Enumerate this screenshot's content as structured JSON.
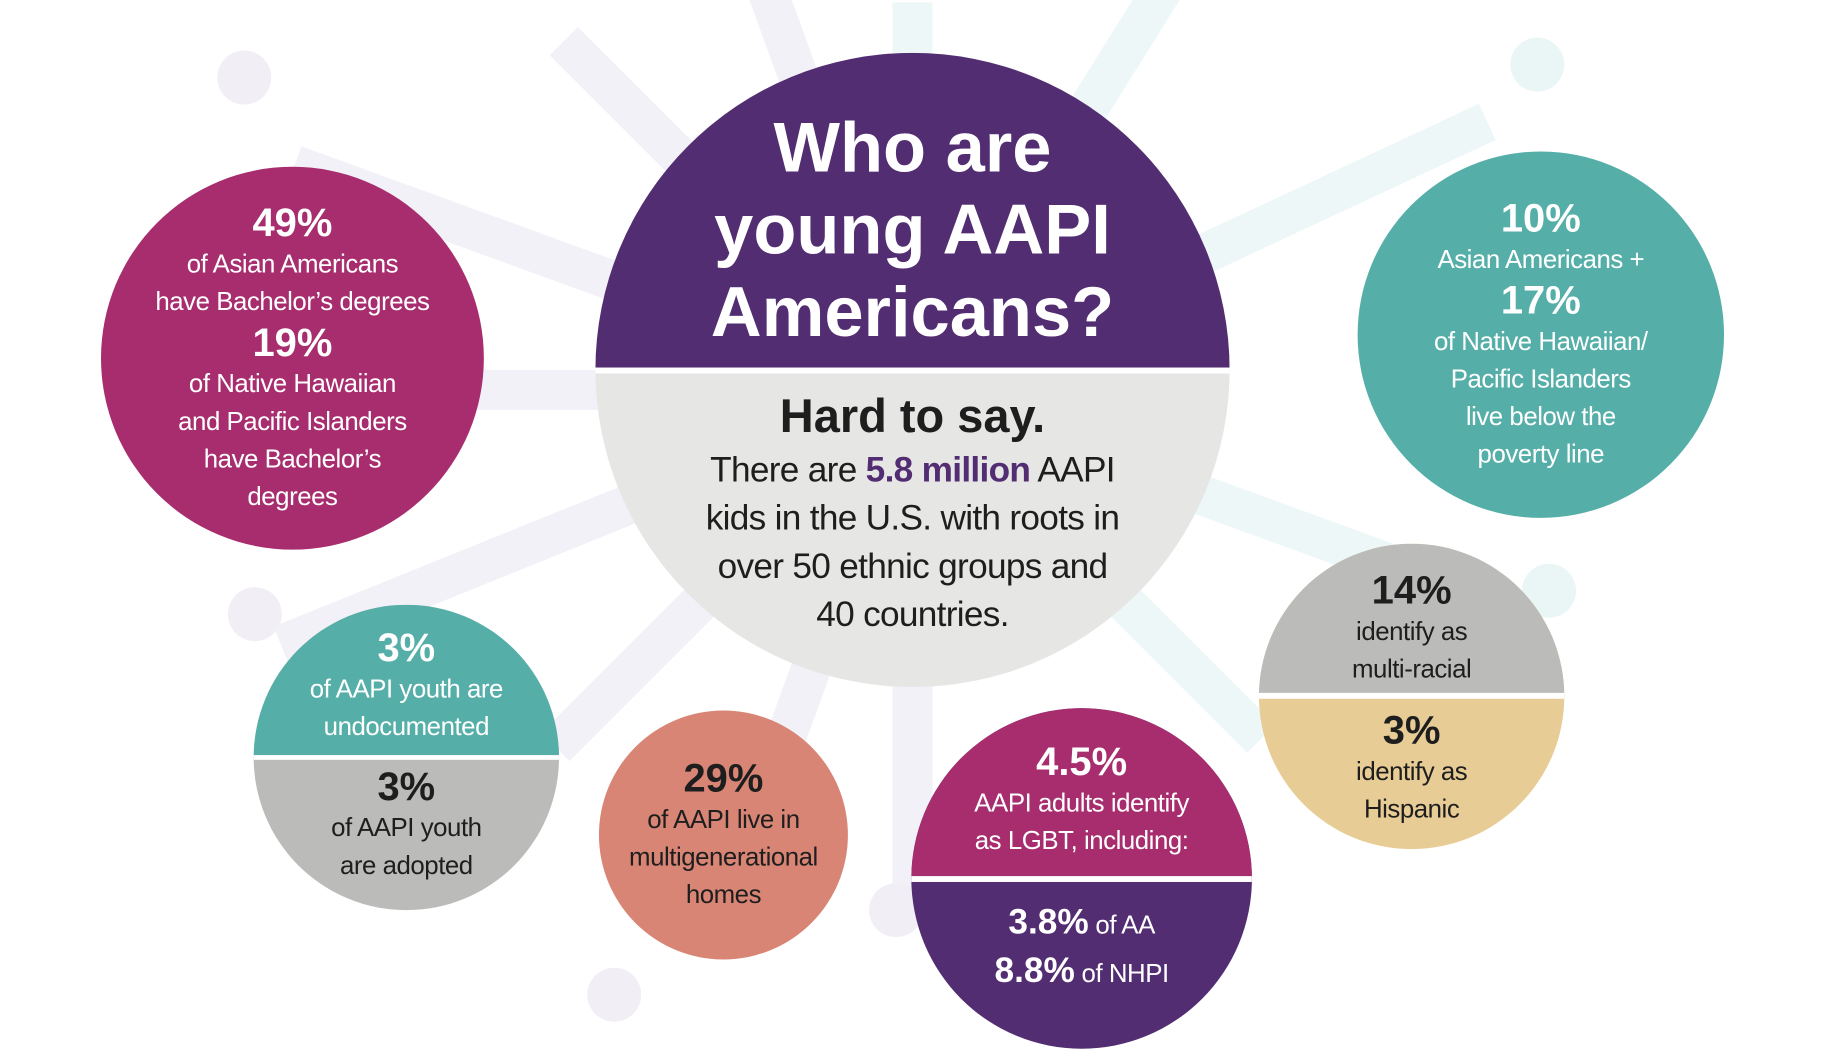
{
  "center": {
    "title_lines": [
      "Who are",
      "young AAPI",
      "Americans?"
    ],
    "subtitle": "Hard to say.",
    "body_pre": "There are ",
    "body_highlight": "5.8 million",
    "body_post": " AAPI",
    "body_lines": [
      "kids in the U.S. with roots in",
      "over 50 ethnic groups and",
      "40 countries."
    ]
  },
  "education": {
    "stat1": "49%",
    "text1": [
      "of Asian Americans",
      "have Bachelor’s degrees"
    ],
    "stat2": "19%",
    "text2": [
      "of Native Hawaiian",
      "and Pacific Islanders",
      "have Bachelor’s",
      "degrees"
    ]
  },
  "poverty": {
    "stat1": "10%",
    "text1": "Asian Americans +",
    "stat2": "17%",
    "text2": [
      "of Native Hawaiian/",
      "Pacific Islanders",
      "live below the",
      "poverty line"
    ]
  },
  "youth": {
    "stat1": "3%",
    "text1": [
      "of AAPI youth are",
      "undocumented"
    ],
    "stat2": "3%",
    "text2": [
      "of AAPI youth",
      "are adopted"
    ]
  },
  "multigen": {
    "stat": "29%",
    "text": [
      "of AAPI live in",
      "multigenerational",
      "homes"
    ]
  },
  "lgbt": {
    "stat": "4.5%",
    "text": [
      "AAPI adults identify",
      "as LGBT, including:"
    ],
    "line1_stat": "3.8%",
    "line1_text": " of AA",
    "line2_stat": "8.8%",
    "line2_text": " of NHPI"
  },
  "identity": {
    "stat1": "14%",
    "text1": [
      "identify as",
      "multi-racial"
    ],
    "stat2": "3%",
    "text2": [
      "identify as",
      "Hispanic"
    ]
  },
  "colors": {
    "purple": "#522D72",
    "magenta": "#A72D6E",
    "teal": "#55AFA8",
    "gray": "#BBBCB9",
    "light_gray": "#E6E6E4",
    "salmon": "#D98575",
    "tan": "#E8CC95"
  }
}
